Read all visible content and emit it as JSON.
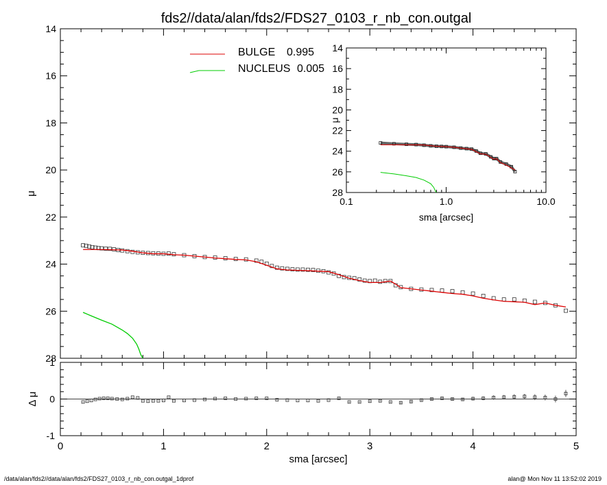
{
  "title": "fds2//data/alan/fds2/FDS27_0103_r_nb_con.outgal",
  "footer": {
    "left": "/data/alan/fds2//data/alan/fds2/FDS27_0103_r_nb_con.outgal_1dprof",
    "right": "alan@  Mon Nov 11 13:52:02 2019"
  },
  "colors": {
    "data": "#000000",
    "bulge": "#dd0000",
    "nucleus": "#00cc00",
    "frame": "#000000"
  },
  "chart_data": [
    {
      "type": "line",
      "panel": "main",
      "xlabel": "sma [arcsec]",
      "ylabel": "μ",
      "xlim": [
        0,
        5
      ],
      "ylim": [
        28,
        14
      ],
      "xticks": [
        0,
        1,
        2,
        3,
        4,
        5
      ],
      "yticks": [
        14,
        16,
        18,
        20,
        22,
        24,
        26,
        28
      ],
      "legend_position": "top-center",
      "legend": [
        {
          "label": "BULGE",
          "value": "0.995",
          "color": "#dd0000"
        },
        {
          "label": "NUCLEUS",
          "value": "0.005",
          "color": "#00cc00"
        }
      ],
      "series": [
        {
          "name": "data",
          "marker": "square",
          "x": [
            0.22,
            0.25,
            0.28,
            0.31,
            0.34,
            0.37,
            0.4,
            0.44,
            0.48,
            0.52,
            0.56,
            0.6,
            0.65,
            0.7,
            0.75,
            0.8,
            0.85,
            0.9,
            0.95,
            1.0,
            1.05,
            1.1,
            1.2,
            1.3,
            1.4,
            1.5,
            1.6,
            1.7,
            1.8,
            1.9,
            1.95,
            2.0,
            2.05,
            2.1,
            2.15,
            2.2,
            2.25,
            2.3,
            2.35,
            2.4,
            2.45,
            2.5,
            2.55,
            2.6,
            2.65,
            2.7,
            2.75,
            2.8,
            2.85,
            2.9,
            2.95,
            3.0,
            3.05,
            3.1,
            3.15,
            3.2,
            3.25,
            3.3,
            3.4,
            3.5,
            3.6,
            3.7,
            3.8,
            3.9,
            4.0,
            4.1,
            4.2,
            4.3,
            4.4,
            4.5,
            4.6,
            4.7,
            4.8,
            4.9
          ],
          "y": [
            23.2,
            23.22,
            23.25,
            23.28,
            23.3,
            23.32,
            23.33,
            23.34,
            23.35,
            23.37,
            23.4,
            23.42,
            23.45,
            23.48,
            23.5,
            23.52,
            23.53,
            23.54,
            23.55,
            23.56,
            23.55,
            23.58,
            23.62,
            23.66,
            23.7,
            23.72,
            23.75,
            23.78,
            23.8,
            23.85,
            23.9,
            23.98,
            24.08,
            24.15,
            24.18,
            24.2,
            24.22,
            24.23,
            24.23,
            24.24,
            24.25,
            24.28,
            24.3,
            24.35,
            24.4,
            24.5,
            24.55,
            24.58,
            24.6,
            24.65,
            24.7,
            24.72,
            24.7,
            24.75,
            24.72,
            24.72,
            24.9,
            24.98,
            25.05,
            25.08,
            25.1,
            25.12,
            25.15,
            25.2,
            25.25,
            25.35,
            25.45,
            25.5,
            25.5,
            25.55,
            25.6,
            25.65,
            25.75,
            25.98
          ]
        },
        {
          "name": "BULGE",
          "color": "#dd0000",
          "x": [
            0.22,
            0.4,
            0.6,
            0.7,
            0.8,
            0.9,
            1.0,
            1.1,
            1.2,
            1.3,
            1.4,
            1.5,
            1.6,
            1.7,
            1.8,
            1.9,
            2.0,
            2.1,
            2.2,
            2.4,
            2.6,
            2.7,
            2.8,
            2.9,
            3.0,
            3.1,
            3.2,
            3.25,
            3.3,
            3.4,
            3.5,
            3.6,
            3.7,
            3.8,
            3.9,
            4.0,
            4.1,
            4.2,
            4.3,
            4.4,
            4.5,
            4.6,
            4.7,
            4.8,
            4.9
          ],
          "y": [
            23.38,
            23.38,
            23.4,
            23.45,
            23.52,
            23.56,
            23.56,
            23.6,
            23.62,
            23.66,
            23.7,
            23.74,
            23.77,
            23.8,
            23.82,
            23.9,
            24.05,
            24.2,
            24.25,
            24.28,
            24.32,
            24.45,
            24.6,
            24.7,
            24.78,
            24.78,
            24.72,
            24.85,
            25.0,
            25.05,
            25.1,
            25.15,
            25.2,
            25.25,
            25.28,
            25.35,
            25.45,
            25.52,
            25.58,
            25.6,
            25.62,
            25.72,
            25.65,
            25.75,
            25.82
          ]
        },
        {
          "name": "NUCLEUS",
          "color": "#00cc00",
          "x": [
            0.22,
            0.3,
            0.4,
            0.5,
            0.6,
            0.65,
            0.7,
            0.74,
            0.76,
            0.78,
            0.8
          ],
          "y": [
            26.05,
            26.2,
            26.38,
            26.55,
            26.8,
            26.95,
            27.15,
            27.4,
            27.6,
            27.85,
            28.0
          ]
        }
      ]
    },
    {
      "type": "scatter",
      "panel": "residual",
      "xlabel": "sma [arcsec]",
      "ylabel": "Δ μ",
      "xlim": [
        0,
        5
      ],
      "ylim": [
        -1,
        1
      ],
      "yticks": [
        -1,
        0,
        1
      ],
      "series": [
        {
          "name": "residual",
          "marker": "square-errorbar",
          "x": [
            0.22,
            0.26,
            0.3,
            0.34,
            0.38,
            0.42,
            0.46,
            0.5,
            0.55,
            0.6,
            0.65,
            0.7,
            0.75,
            0.8,
            0.85,
            0.9,
            0.95,
            1.0,
            1.05,
            1.1,
            1.2,
            1.3,
            1.4,
            1.5,
            1.6,
            1.7,
            1.8,
            1.9,
            2.0,
            2.1,
            2.2,
            2.3,
            2.4,
            2.5,
            2.6,
            2.7,
            2.8,
            2.9,
            3.0,
            3.1,
            3.2,
            3.3,
            3.4,
            3.5,
            3.6,
            3.7,
            3.8,
            3.9,
            4.0,
            4.1,
            4.2,
            4.3,
            4.4,
            4.5,
            4.6,
            4.7,
            4.8,
            4.9
          ],
          "y": [
            -0.08,
            -0.06,
            -0.04,
            -0.01,
            0.01,
            0.02,
            0.02,
            0.01,
            0.0,
            -0.01,
            0.01,
            0.05,
            0.03,
            -0.05,
            -0.06,
            -0.05,
            -0.05,
            -0.04,
            0.05,
            -0.05,
            -0.04,
            -0.03,
            -0.01,
            0.01,
            0.02,
            0.0,
            0.01,
            0.02,
            0.02,
            -0.02,
            -0.03,
            -0.04,
            -0.04,
            -0.05,
            -0.03,
            0.02,
            -0.08,
            -0.08,
            -0.06,
            -0.05,
            -0.08,
            -0.1,
            -0.07,
            -0.03,
            0.0,
            0.02,
            0.0,
            -0.01,
            0.01,
            0.02,
            0.04,
            0.05,
            0.06,
            0.07,
            0.05,
            0.04,
            0.0,
            0.15
          ],
          "err": [
            0.01,
            0.01,
            0.01,
            0.01,
            0.01,
            0.01,
            0.01,
            0.01,
            0.01,
            0.01,
            0.01,
            0.01,
            0.01,
            0.01,
            0.01,
            0.01,
            0.01,
            0.01,
            0.01,
            0.01,
            0.01,
            0.01,
            0.01,
            0.01,
            0.01,
            0.01,
            0.01,
            0.01,
            0.01,
            0.01,
            0.01,
            0.01,
            0.01,
            0.01,
            0.01,
            0.02,
            0.02,
            0.02,
            0.02,
            0.02,
            0.02,
            0.03,
            0.03,
            0.03,
            0.03,
            0.04,
            0.04,
            0.04,
            0.05,
            0.05,
            0.06,
            0.06,
            0.07,
            0.07,
            0.08,
            0.08,
            0.09,
            0.1
          ]
        },
        {
          "name": "zero-line",
          "x": [
            0,
            5
          ],
          "y": [
            0,
            0
          ]
        }
      ]
    },
    {
      "type": "line",
      "panel": "inset",
      "xlabel": "sma [arcsec]",
      "ylabel": "μ",
      "xscale": "log",
      "xlim": [
        0.1,
        10.0
      ],
      "ylim": [
        28,
        14
      ],
      "xticks": [
        0.1,
        1.0,
        10.0
      ],
      "xticklabels": [
        "0.1",
        "1.0",
        "10.0"
      ],
      "yticks": [
        14,
        16,
        18,
        20,
        22,
        24,
        26,
        28
      ],
      "series": [
        {
          "name": "data",
          "x": [
            0.22,
            0.3,
            0.4,
            0.5,
            0.6,
            0.7,
            0.8,
            0.9,
            1.0,
            1.2,
            1.4,
            1.6,
            1.8,
            2.0,
            2.2,
            2.5,
            2.8,
            3.0,
            3.2,
            3.5,
            4.0,
            4.5,
            4.9
          ],
          "y": [
            23.2,
            23.28,
            23.33,
            23.36,
            23.42,
            23.48,
            23.52,
            23.54,
            23.56,
            23.62,
            23.7,
            23.75,
            23.8,
            23.98,
            24.2,
            24.26,
            24.55,
            24.72,
            24.72,
            25.05,
            25.25,
            25.5,
            25.98
          ]
        },
        {
          "name": "BULGE",
          "color": "#dd0000",
          "x": [
            0.22,
            0.4,
            0.6,
            0.8,
            1.0,
            1.2,
            1.5,
            1.8,
            2.0,
            2.2,
            2.5,
            2.8,
            3.0,
            3.2,
            3.5,
            4.0,
            4.5,
            4.9
          ],
          "y": [
            23.38,
            23.38,
            23.4,
            23.52,
            23.56,
            23.62,
            23.74,
            23.82,
            24.05,
            24.25,
            24.3,
            24.6,
            24.78,
            24.72,
            25.1,
            25.35,
            25.62,
            25.82
          ]
        },
        {
          "name": "NUCLEUS",
          "color": "#00cc00",
          "x": [
            0.22,
            0.3,
            0.4,
            0.5,
            0.6,
            0.7,
            0.75,
            0.78,
            0.8
          ],
          "y": [
            26.05,
            26.2,
            26.38,
            26.55,
            26.8,
            27.15,
            27.5,
            27.85,
            28.0
          ]
        }
      ]
    }
  ]
}
